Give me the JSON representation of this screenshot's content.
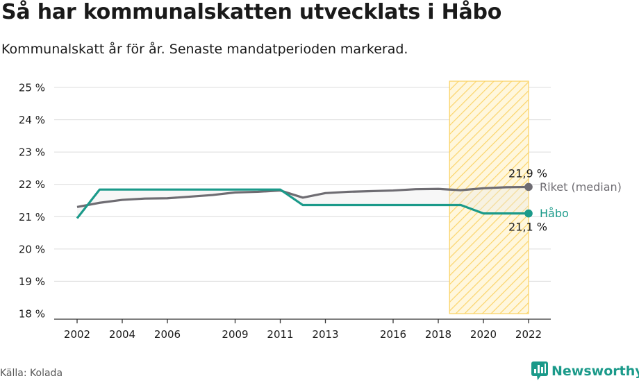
{
  "title": "Så har kommunalskatten utvecklats i Håbo",
  "subtitle": "Kommunalskatt år för år. Senaste mandatperioden markerad.",
  "source": "Källa: Kolada",
  "brand": {
    "name": "Newsworthy",
    "logo_icon": "newsworthy-logo-icon"
  },
  "colors": {
    "habo": "#1b9a8a",
    "riket": "#6e6c72",
    "highlight": "#fbd46a"
  },
  "chart_data": {
    "type": "line",
    "title": "Så har kommunalskatten utvecklats i Håbo",
    "subtitle": "Kommunalskatt år för år. Senaste mandatperioden markerad.",
    "xlabel": "",
    "ylabel": "",
    "xlim": [
      2002,
      2022
    ],
    "ylim": [
      18,
      25
    ],
    "y_ticks": [
      18,
      19,
      20,
      21,
      22,
      23,
      24,
      25
    ],
    "y_tick_labels": [
      "18 %",
      "19 %",
      "20 %",
      "21 %",
      "22 %",
      "23 %",
      "24 %",
      "25 %"
    ],
    "x_ticks": [
      2002,
      2004,
      2006,
      2009,
      2011,
      2013,
      2016,
      2018,
      2020,
      2022
    ],
    "x_tick_labels": [
      "2002",
      "2004",
      "2006",
      "2009",
      "2011",
      "2013",
      "2016",
      "2018",
      "2020",
      "2022"
    ],
    "grid": true,
    "highlight_period": [
      2018.5,
      2022
    ],
    "x": [
      2002,
      2003,
      2004,
      2005,
      2006,
      2007,
      2008,
      2009,
      2010,
      2011,
      2012,
      2013,
      2014,
      2015,
      2016,
      2017,
      2018,
      2019,
      2020,
      2021,
      2022
    ],
    "series": [
      {
        "name": "Riket (median)",
        "values": [
          21.3,
          21.43,
          21.52,
          21.56,
          21.57,
          21.62,
          21.67,
          21.75,
          21.77,
          21.81,
          21.59,
          21.73,
          21.77,
          21.79,
          21.81,
          21.85,
          21.86,
          21.82,
          21.88,
          21.91,
          21.92
        ],
        "end_label": "21,9 %"
      },
      {
        "name": "Håbo",
        "values": [
          20.95,
          21.84,
          21.84,
          21.84,
          21.84,
          21.84,
          21.84,
          21.84,
          21.84,
          21.84,
          21.36,
          21.36,
          21.36,
          21.36,
          21.36,
          21.36,
          21.36,
          21.36,
          21.1,
          21.1,
          21.1
        ],
        "end_label": "21,1 %"
      }
    ]
  }
}
